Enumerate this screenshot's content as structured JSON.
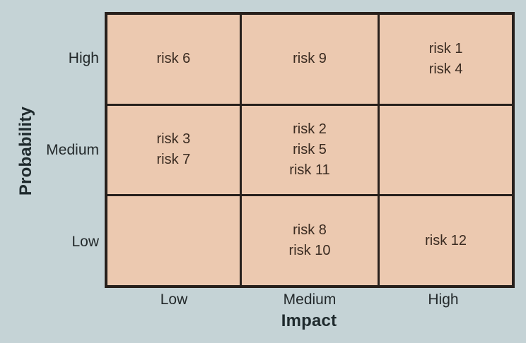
{
  "chart_data": {
    "type": "heatmap",
    "title": "",
    "xlabel": "Impact",
    "ylabel": "Probability",
    "rows": [
      "High",
      "Medium",
      "Low"
    ],
    "columns": [
      "Low",
      "Medium",
      "High"
    ],
    "cells": [
      [
        [
          "risk 6"
        ],
        [
          "risk 9"
        ],
        [
          "risk 1",
          "risk 4"
        ]
      ],
      [
        [
          "risk 3",
          "risk 7"
        ],
        [
          "risk 2",
          "risk 5",
          "risk 11"
        ],
        []
      ],
      [
        [],
        [
          "risk 8",
          "risk 10"
        ],
        [
          "risk 12"
        ]
      ]
    ],
    "legend_position": "none",
    "grid": true
  },
  "colors": {
    "background": "#c5d3d6",
    "cell_fill": "#ecc9b0",
    "grid_line": "#27201c",
    "risk_text": "#3a2b21",
    "label_text": "#23292b"
  }
}
